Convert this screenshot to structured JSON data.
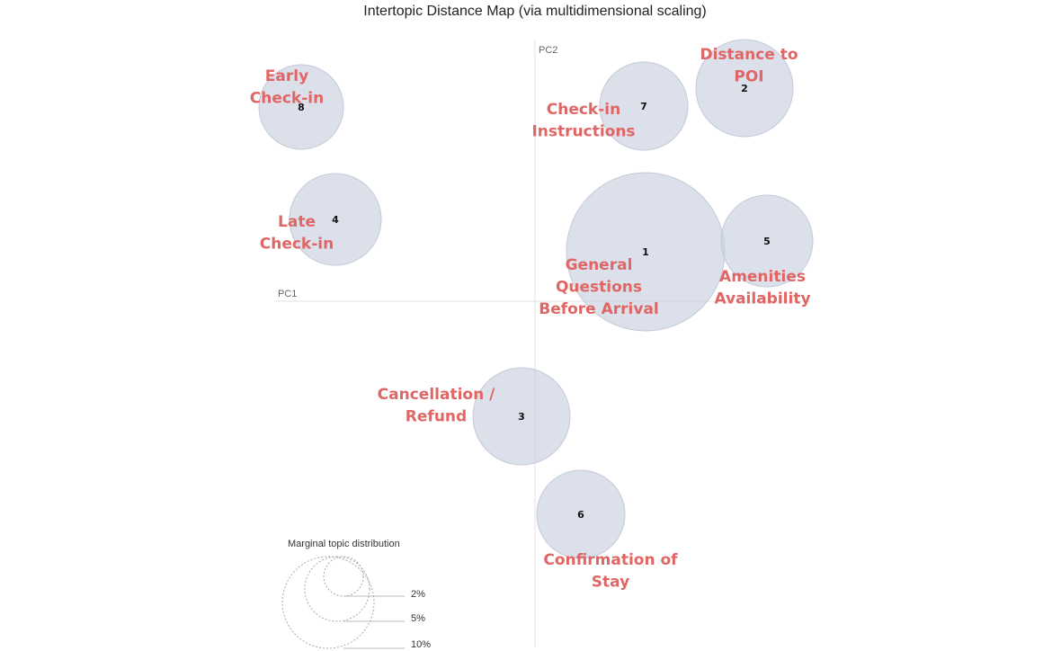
{
  "chart_data": {
    "type": "scatter",
    "title": "Intertopic Distance Map (via multidimensional scaling)",
    "xlabel": "PC1",
    "ylabel": "PC2",
    "topics": [
      {
        "id": "1",
        "label_lines": [
          "General",
          "Questions",
          "Before Arrival"
        ]
      },
      {
        "id": "2",
        "label_lines": [
          "Distance to",
          "POI"
        ]
      },
      {
        "id": "3",
        "label_lines": [
          "Cancellation /",
          "Refund"
        ]
      },
      {
        "id": "4",
        "label_lines": [
          "Late",
          "Check-in"
        ]
      },
      {
        "id": "5",
        "label_lines": [
          "Amenities",
          "Availability"
        ]
      },
      {
        "id": "6",
        "label_lines": [
          "Confirmation of",
          "Stay"
        ]
      },
      {
        "id": "7",
        "label_lines": [
          "Check-in",
          "Instructions"
        ]
      },
      {
        "id": "8",
        "label_lines": [
          "Early",
          "Check-in"
        ]
      }
    ],
    "legend": {
      "title": "Marginal topic distribution",
      "entries": [
        "2%",
        "5%",
        "10%"
      ]
    }
  }
}
